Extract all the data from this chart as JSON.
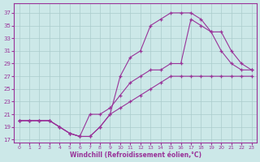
{
  "xlabel": "Windchill (Refroidissement éolien,°C)",
  "ylabel": "",
  "bg_color": "#cce8e8",
  "grid_color": "#aacccc",
  "line_color": "#993399",
  "marker_color": "#993399",
  "x_ticks": [
    0,
    1,
    2,
    3,
    4,
    5,
    6,
    7,
    8,
    9,
    10,
    11,
    12,
    13,
    14,
    15,
    16,
    17,
    18,
    19,
    20,
    21,
    22,
    23
  ],
  "y_ticks": [
    17,
    19,
    21,
    23,
    25,
    27,
    29,
    31,
    33,
    35,
    37
  ],
  "xlim": [
    -0.5,
    23.5
  ],
  "ylim": [
    16.5,
    38.5
  ],
  "line1_x": [
    0,
    1,
    2,
    3,
    4,
    5,
    6,
    7,
    8,
    9,
    10,
    11,
    12,
    13,
    14,
    15,
    16,
    17,
    18,
    19,
    20,
    21,
    22,
    23
  ],
  "line1_y": [
    20,
    20,
    20,
    20,
    19,
    18,
    17.5,
    17.5,
    19,
    21,
    27,
    30,
    31,
    35,
    36,
    37,
    37,
    37,
    36,
    34,
    31,
    29,
    28,
    28
  ],
  "line2_x": [
    0,
    1,
    2,
    3,
    4,
    5,
    6,
    7,
    8,
    9,
    10,
    11,
    12,
    13,
    14,
    15,
    16,
    17,
    18,
    19,
    20,
    21,
    22,
    23
  ],
  "line2_y": [
    20,
    20,
    20,
    20,
    19,
    18,
    17.5,
    21,
    21,
    22,
    24,
    26,
    27,
    28,
    28,
    29,
    29,
    36,
    35,
    34,
    34,
    31,
    29,
    28
  ],
  "line3_x": [
    0,
    1,
    2,
    3,
    4,
    5,
    6,
    7,
    8,
    9,
    10,
    11,
    12,
    13,
    14,
    15,
    16,
    17,
    18,
    19,
    20,
    21,
    22,
    23
  ],
  "line3_y": [
    20,
    20,
    20,
    20,
    19,
    18,
    17.5,
    17.5,
    19,
    21,
    22,
    23,
    24,
    25,
    26,
    27,
    27,
    27,
    27,
    27,
    27,
    27,
    27,
    27
  ]
}
